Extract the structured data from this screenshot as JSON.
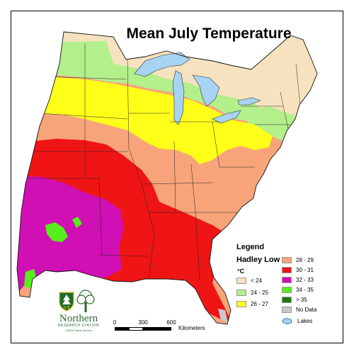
{
  "title": "Mean July Temperature",
  "legend": {
    "title": "Legend",
    "subtitle": "Hadley Low",
    "unit": "°C",
    "items": [
      {
        "label": "< 24",
        "color": "#f6e2be"
      },
      {
        "label": "24 - 25",
        "color": "#b3ef8a"
      },
      {
        "label": "26 - 27",
        "color": "#ffff1a"
      },
      {
        "label": "28 - 29",
        "color": "#f8a47a"
      },
      {
        "label": "30 - 31",
        "color": "#f01515"
      },
      {
        "label": "32 - 33",
        "color": "#d00fb4"
      },
      {
        "label": "34 - 35",
        "color": "#55ef1b"
      },
      {
        "label": "> 35",
        "color": "#1c7a0b"
      },
      {
        "label": "No Data",
        "color": "#c8c8c8"
      },
      {
        "label": "Lakes",
        "color": "#a6d4f2"
      }
    ]
  },
  "scale": {
    "ticks": [
      "0",
      "300",
      "600"
    ],
    "unit": "Kilometers"
  },
  "logo": {
    "name": "Northern",
    "station": "RESEARCH STATION",
    "agency": "USDA Forest Service",
    "shield_text": "U S"
  }
}
